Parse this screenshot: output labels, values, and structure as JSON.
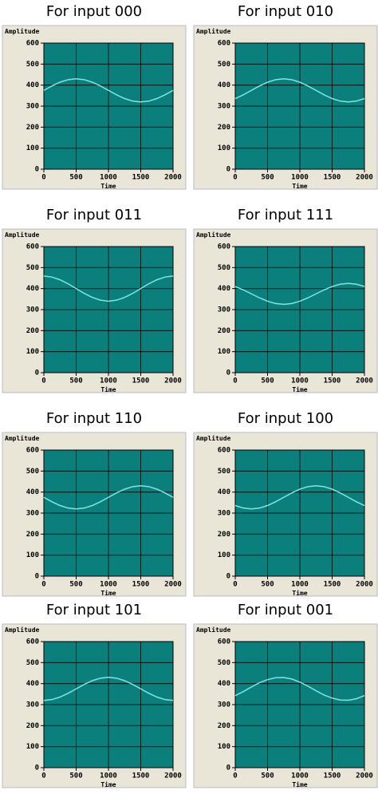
{
  "chart_data": [
    {
      "type": "line",
      "title": "For input 000",
      "x_label": "Time",
      "y_label": "Amplitude",
      "x": [
        0,
        125,
        250,
        375,
        500,
        625,
        750,
        875,
        1000,
        1125,
        1250,
        1375,
        1500,
        1625,
        1750,
        1875,
        2000
      ],
      "values": [
        375,
        396,
        414,
        426,
        430,
        426,
        414,
        396,
        375,
        354,
        336,
        324,
        320,
        324,
        336,
        354,
        375
      ],
      "color": "#7fe6e6",
      "xlim": [
        0,
        2000
      ],
      "ylim": [
        0,
        600
      ],
      "xticks": [
        0,
        500,
        1000,
        1500,
        2000
      ],
      "yticks": [
        0,
        100,
        200,
        300,
        400,
        500,
        600
      ],
      "grid": true
    },
    {
      "type": "line",
      "title": "For input 010",
      "x_label": "Time",
      "y_label": "Amplitude",
      "x": [
        0,
        125,
        250,
        375,
        500,
        625,
        750,
        875,
        1000,
        1125,
        1250,
        1375,
        1500,
        1625,
        1750,
        1875,
        2000
      ],
      "values": [
        336,
        354,
        375,
        396,
        414,
        426,
        430,
        426,
        414,
        396,
        375,
        354,
        336,
        324,
        320,
        324,
        336
      ],
      "color": "#7fe6e6",
      "xlim": [
        0,
        2000
      ],
      "ylim": [
        0,
        600
      ],
      "xticks": [
        0,
        500,
        1000,
        1500,
        2000
      ],
      "yticks": [
        0,
        100,
        200,
        300,
        400,
        500,
        600
      ],
      "grid": true
    },
    {
      "type": "line",
      "title": "For input 011",
      "x_label": "Time",
      "y_label": "Amplitude",
      "x": [
        0,
        125,
        250,
        375,
        500,
        625,
        750,
        875,
        1000,
        1125,
        1250,
        1375,
        1500,
        1625,
        1750,
        1875,
        2000
      ],
      "values": [
        460,
        455,
        442,
        423,
        400,
        377,
        358,
        345,
        340,
        345,
        358,
        377,
        400,
        423,
        442,
        455,
        460
      ],
      "color": "#7fe6e6",
      "xlim": [
        0,
        2000
      ],
      "ylim": [
        0,
        600
      ],
      "xticks": [
        0,
        500,
        1000,
        1500,
        2000
      ],
      "yticks": [
        0,
        100,
        200,
        300,
        400,
        500,
        600
      ],
      "grid": true
    },
    {
      "type": "line",
      "title": "For input 111",
      "x_label": "Time",
      "y_label": "Amplitude",
      "x": [
        0,
        125,
        250,
        375,
        500,
        625,
        750,
        875,
        1000,
        1125,
        1250,
        1375,
        1500,
        1625,
        1750,
        1875,
        2000
      ],
      "values": [
        410,
        394,
        375,
        356,
        340,
        329,
        325,
        329,
        340,
        356,
        375,
        394,
        410,
        421,
        425,
        421,
        410
      ],
      "color": "#7fe6e6",
      "xlim": [
        0,
        2000
      ],
      "ylim": [
        0,
        600
      ],
      "xticks": [
        0,
        500,
        1000,
        1500,
        2000
      ],
      "yticks": [
        0,
        100,
        200,
        300,
        400,
        500,
        600
      ],
      "grid": true
    },
    {
      "type": "line",
      "title": "For input 110",
      "x_label": "Time",
      "y_label": "Amplitude",
      "x": [
        0,
        125,
        250,
        375,
        500,
        625,
        750,
        875,
        1000,
        1125,
        1250,
        1375,
        1500,
        1625,
        1750,
        1875,
        2000
      ],
      "values": [
        375,
        354,
        336,
        324,
        320,
        324,
        336,
        354,
        375,
        396,
        414,
        426,
        430,
        426,
        414,
        396,
        375
      ],
      "color": "#7fe6e6",
      "xlim": [
        0,
        2000
      ],
      "ylim": [
        0,
        600
      ],
      "xticks": [
        0,
        500,
        1000,
        1500,
        2000
      ],
      "yticks": [
        0,
        100,
        200,
        300,
        400,
        500,
        600
      ],
      "grid": true
    },
    {
      "type": "line",
      "title": "For input 100",
      "x_label": "Time",
      "y_label": "Amplitude",
      "x": [
        0,
        125,
        250,
        375,
        500,
        625,
        750,
        875,
        1000,
        1125,
        1250,
        1375,
        1500,
        1625,
        1750,
        1875,
        2000
      ],
      "values": [
        336,
        324,
        320,
        324,
        336,
        354,
        375,
        396,
        414,
        426,
        430,
        426,
        414,
        396,
        375,
        354,
        336
      ],
      "color": "#7fe6e6",
      "xlim": [
        0,
        2000
      ],
      "ylim": [
        0,
        600
      ],
      "xticks": [
        0,
        500,
        1000,
        1500,
        2000
      ],
      "yticks": [
        0,
        100,
        200,
        300,
        400,
        500,
        600
      ],
      "grid": true
    },
    {
      "type": "line",
      "title": "For input 101",
      "x_label": "Time",
      "y_label": "Amplitude",
      "x": [
        0,
        125,
        250,
        375,
        500,
        625,
        750,
        875,
        1000,
        1125,
        1250,
        1375,
        1500,
        1625,
        1750,
        1875,
        2000
      ],
      "values": [
        320,
        324,
        336,
        354,
        375,
        396,
        414,
        426,
        430,
        426,
        414,
        396,
        375,
        354,
        336,
        324,
        320
      ],
      "color": "#7fe6e6",
      "xlim": [
        0,
        2000
      ],
      "ylim": [
        0,
        600
      ],
      "xticks": [
        0,
        500,
        1000,
        1500,
        2000
      ],
      "yticks": [
        0,
        100,
        200,
        300,
        400,
        500,
        600
      ],
      "grid": true
    },
    {
      "type": "line",
      "title": "For input 001",
      "x_label": "Time",
      "y_label": "Amplitude",
      "x": [
        0,
        125,
        250,
        375,
        500,
        625,
        750,
        875,
        1000,
        1125,
        1250,
        1375,
        1500,
        1625,
        1750,
        1875,
        2000
      ],
      "values": [
        343,
        362,
        384,
        404,
        419,
        428,
        429,
        422,
        407,
        388,
        366,
        346,
        331,
        322,
        321,
        328,
        343
      ],
      "color": "#7fe6e6",
      "xlim": [
        0,
        2000
      ],
      "ylim": [
        0,
        600
      ],
      "xticks": [
        0,
        500,
        1000,
        1500,
        2000
      ],
      "yticks": [
        0,
        100,
        200,
        300,
        400,
        500,
        600
      ],
      "grid": true
    }
  ]
}
